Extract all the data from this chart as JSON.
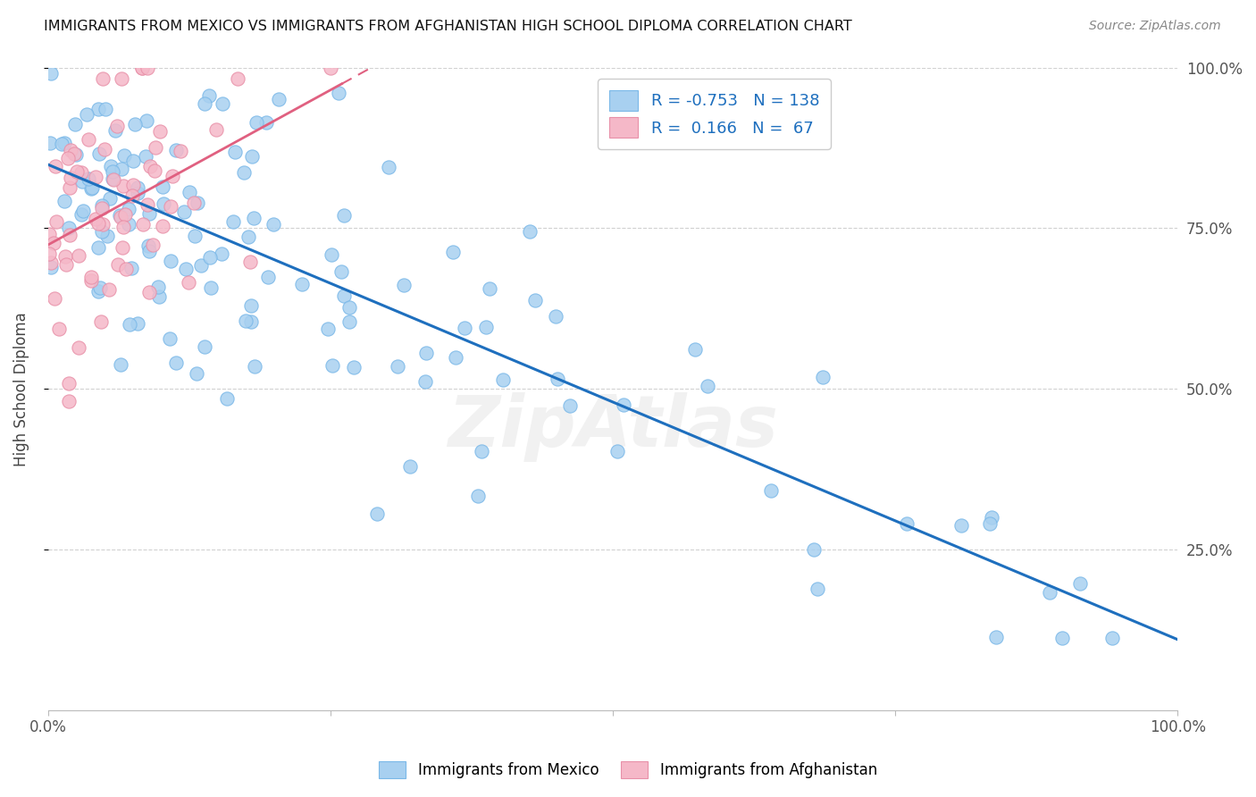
{
  "title": "IMMIGRANTS FROM MEXICO VS IMMIGRANTS FROM AFGHANISTAN HIGH SCHOOL DIPLOMA CORRELATION CHART",
  "source": "Source: ZipAtlas.com",
  "ylabel": "High School Diploma",
  "legend_mexico": "Immigrants from Mexico",
  "legend_afghanistan": "Immigrants from Afghanistan",
  "r_mexico": -0.753,
  "n_mexico": 138,
  "r_afghanistan": 0.166,
  "n_afghanistan": 67,
  "color_mexico": "#a8d0f0",
  "color_afghanistan": "#f5b8c8",
  "line_mexico": "#1e6fbe",
  "line_afghanistan": "#e06080",
  "watermark": "ZipAtlas",
  "xlim": [
    0.0,
    1.0
  ],
  "ylim": [
    0.0,
    1.0
  ],
  "yticks": [
    0.25,
    0.5,
    0.75,
    1.0
  ],
  "ytick_labels": [
    "25.0%",
    "50.0%",
    "75.0%",
    "100.0%"
  ],
  "background_color": "#ffffff"
}
